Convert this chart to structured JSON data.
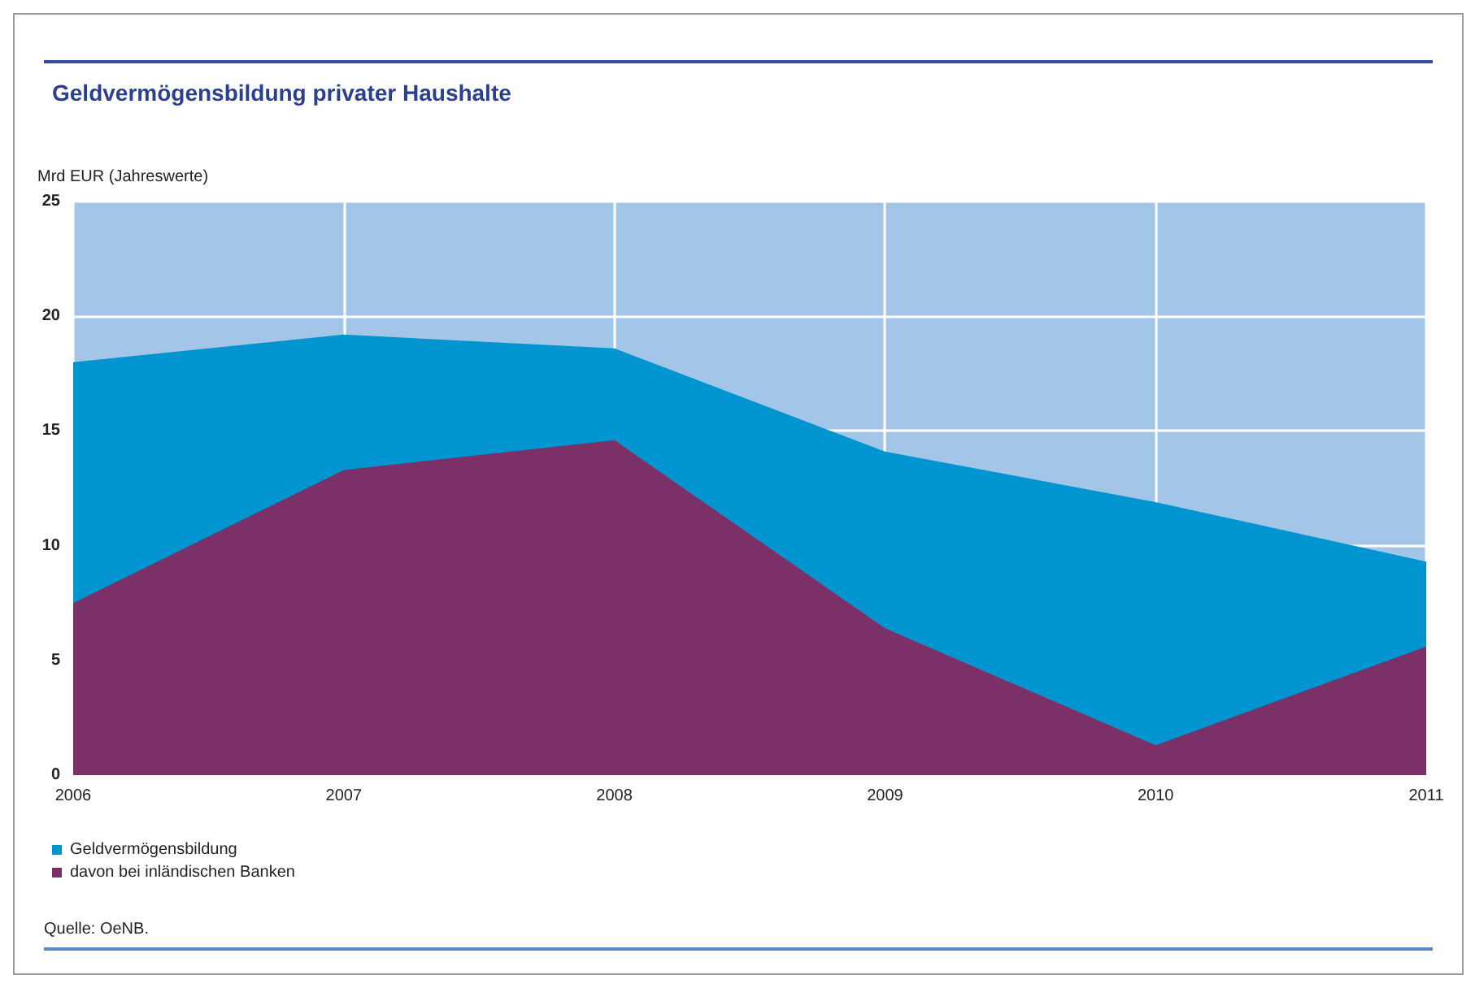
{
  "chart_data": {
    "type": "area",
    "title": "Geldvermögensbildung privater Haushalte",
    "ylabel": "Mrd EUR (Jahreswerte)",
    "categories": [
      "2006",
      "2007",
      "2008",
      "2009",
      "2010",
      "2011"
    ],
    "series": [
      {
        "name": "Geldvermögensbildung",
        "color": "#0095d0",
        "values": [
          18,
          19.2,
          18.6,
          14.1,
          11.9,
          9.3
        ]
      },
      {
        "name": "davon bei inländischen Banken",
        "color": "#7b3068",
        "values": [
          7.5,
          13.3,
          14.6,
          6.4,
          1.3,
          5.6
        ]
      }
    ],
    "ylim": [
      0,
      25
    ],
    "yticks": [
      0,
      5,
      10,
      15,
      20,
      25
    ],
    "grid": true,
    "legend": "bottom left",
    "annotations": [
      "Quelle: OeNB."
    ]
  }
}
